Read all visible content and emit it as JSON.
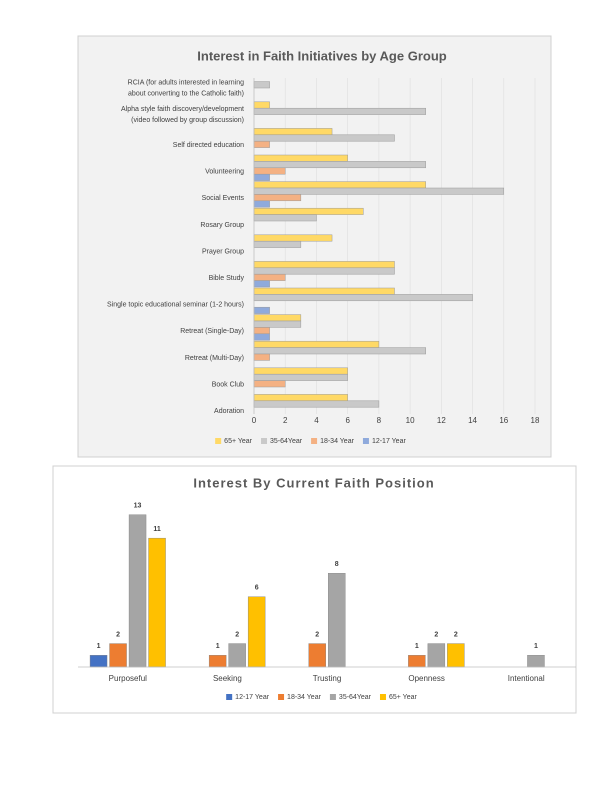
{
  "chart_data": [
    {
      "type": "barh",
      "title": "Interest in Faith Initiatives by Age Group",
      "categories": [
        "RCIA (for adults interested in learning\nabout converting to the Catholic faith)",
        "Alpha style faith discovery/development\n(video followed by group discussion)",
        "Self directed education",
        "Volunteering",
        "Social Events",
        "Rosary Group",
        "Prayer Group",
        "Bible Study",
        "Single topic educational seminar (1-2 hours)",
        "Retreat (Single-Day)",
        "Retreat (Multi-Day)",
        "Book Club",
        "Adoration"
      ],
      "series": [
        {
          "name": "65+ Year",
          "color": "#ffd966",
          "values": [
            0,
            1,
            5,
            6,
            11,
            7,
            5,
            9,
            9,
            3,
            8,
            6,
            6
          ]
        },
        {
          "name": "35-64Year",
          "color": "#c9c9c9",
          "values": [
            1,
            11,
            9,
            11,
            16,
            4,
            3,
            9,
            14,
            3,
            11,
            6,
            8
          ]
        },
        {
          "name": "18-34 Year",
          "color": "#f4b183",
          "values": [
            0,
            0,
            1,
            2,
            3,
            0,
            0,
            2,
            0,
            1,
            1,
            2,
            0
          ]
        },
        {
          "name": "12-17 Year",
          "color": "#8faadc",
          "values": [
            0,
            0,
            0,
            1,
            1,
            0,
            0,
            1,
            1,
            1,
            0,
            0,
            0
          ]
        }
      ],
      "xlim": [
        0,
        18
      ],
      "xticks": [
        0,
        2,
        4,
        6,
        8,
        10,
        12,
        14,
        16,
        18
      ],
      "grid": true,
      "legend": "bottom"
    },
    {
      "type": "bar",
      "title": "Interest By Current Faith Position",
      "categories": [
        "Purposeful",
        "Seeking",
        "Trusting",
        "Openness",
        "Intentional"
      ],
      "series": [
        {
          "name": "12-17 Year",
          "color": "#4472c4",
          "values": [
            1,
            null,
            null,
            null,
            null
          ]
        },
        {
          "name": "18-34 Year",
          "color": "#ed7d31",
          "values": [
            2,
            1,
            2,
            1,
            null
          ]
        },
        {
          "name": "35-64Year",
          "color": "#a5a5a5",
          "values": [
            13,
            2,
            8,
            2,
            1
          ]
        },
        {
          "name": "65+ Year",
          "color": "#ffc000",
          "values": [
            11,
            6,
            null,
            2,
            null
          ]
        }
      ],
      "ylim": [
        0,
        14
      ],
      "legend": "bottom"
    }
  ]
}
